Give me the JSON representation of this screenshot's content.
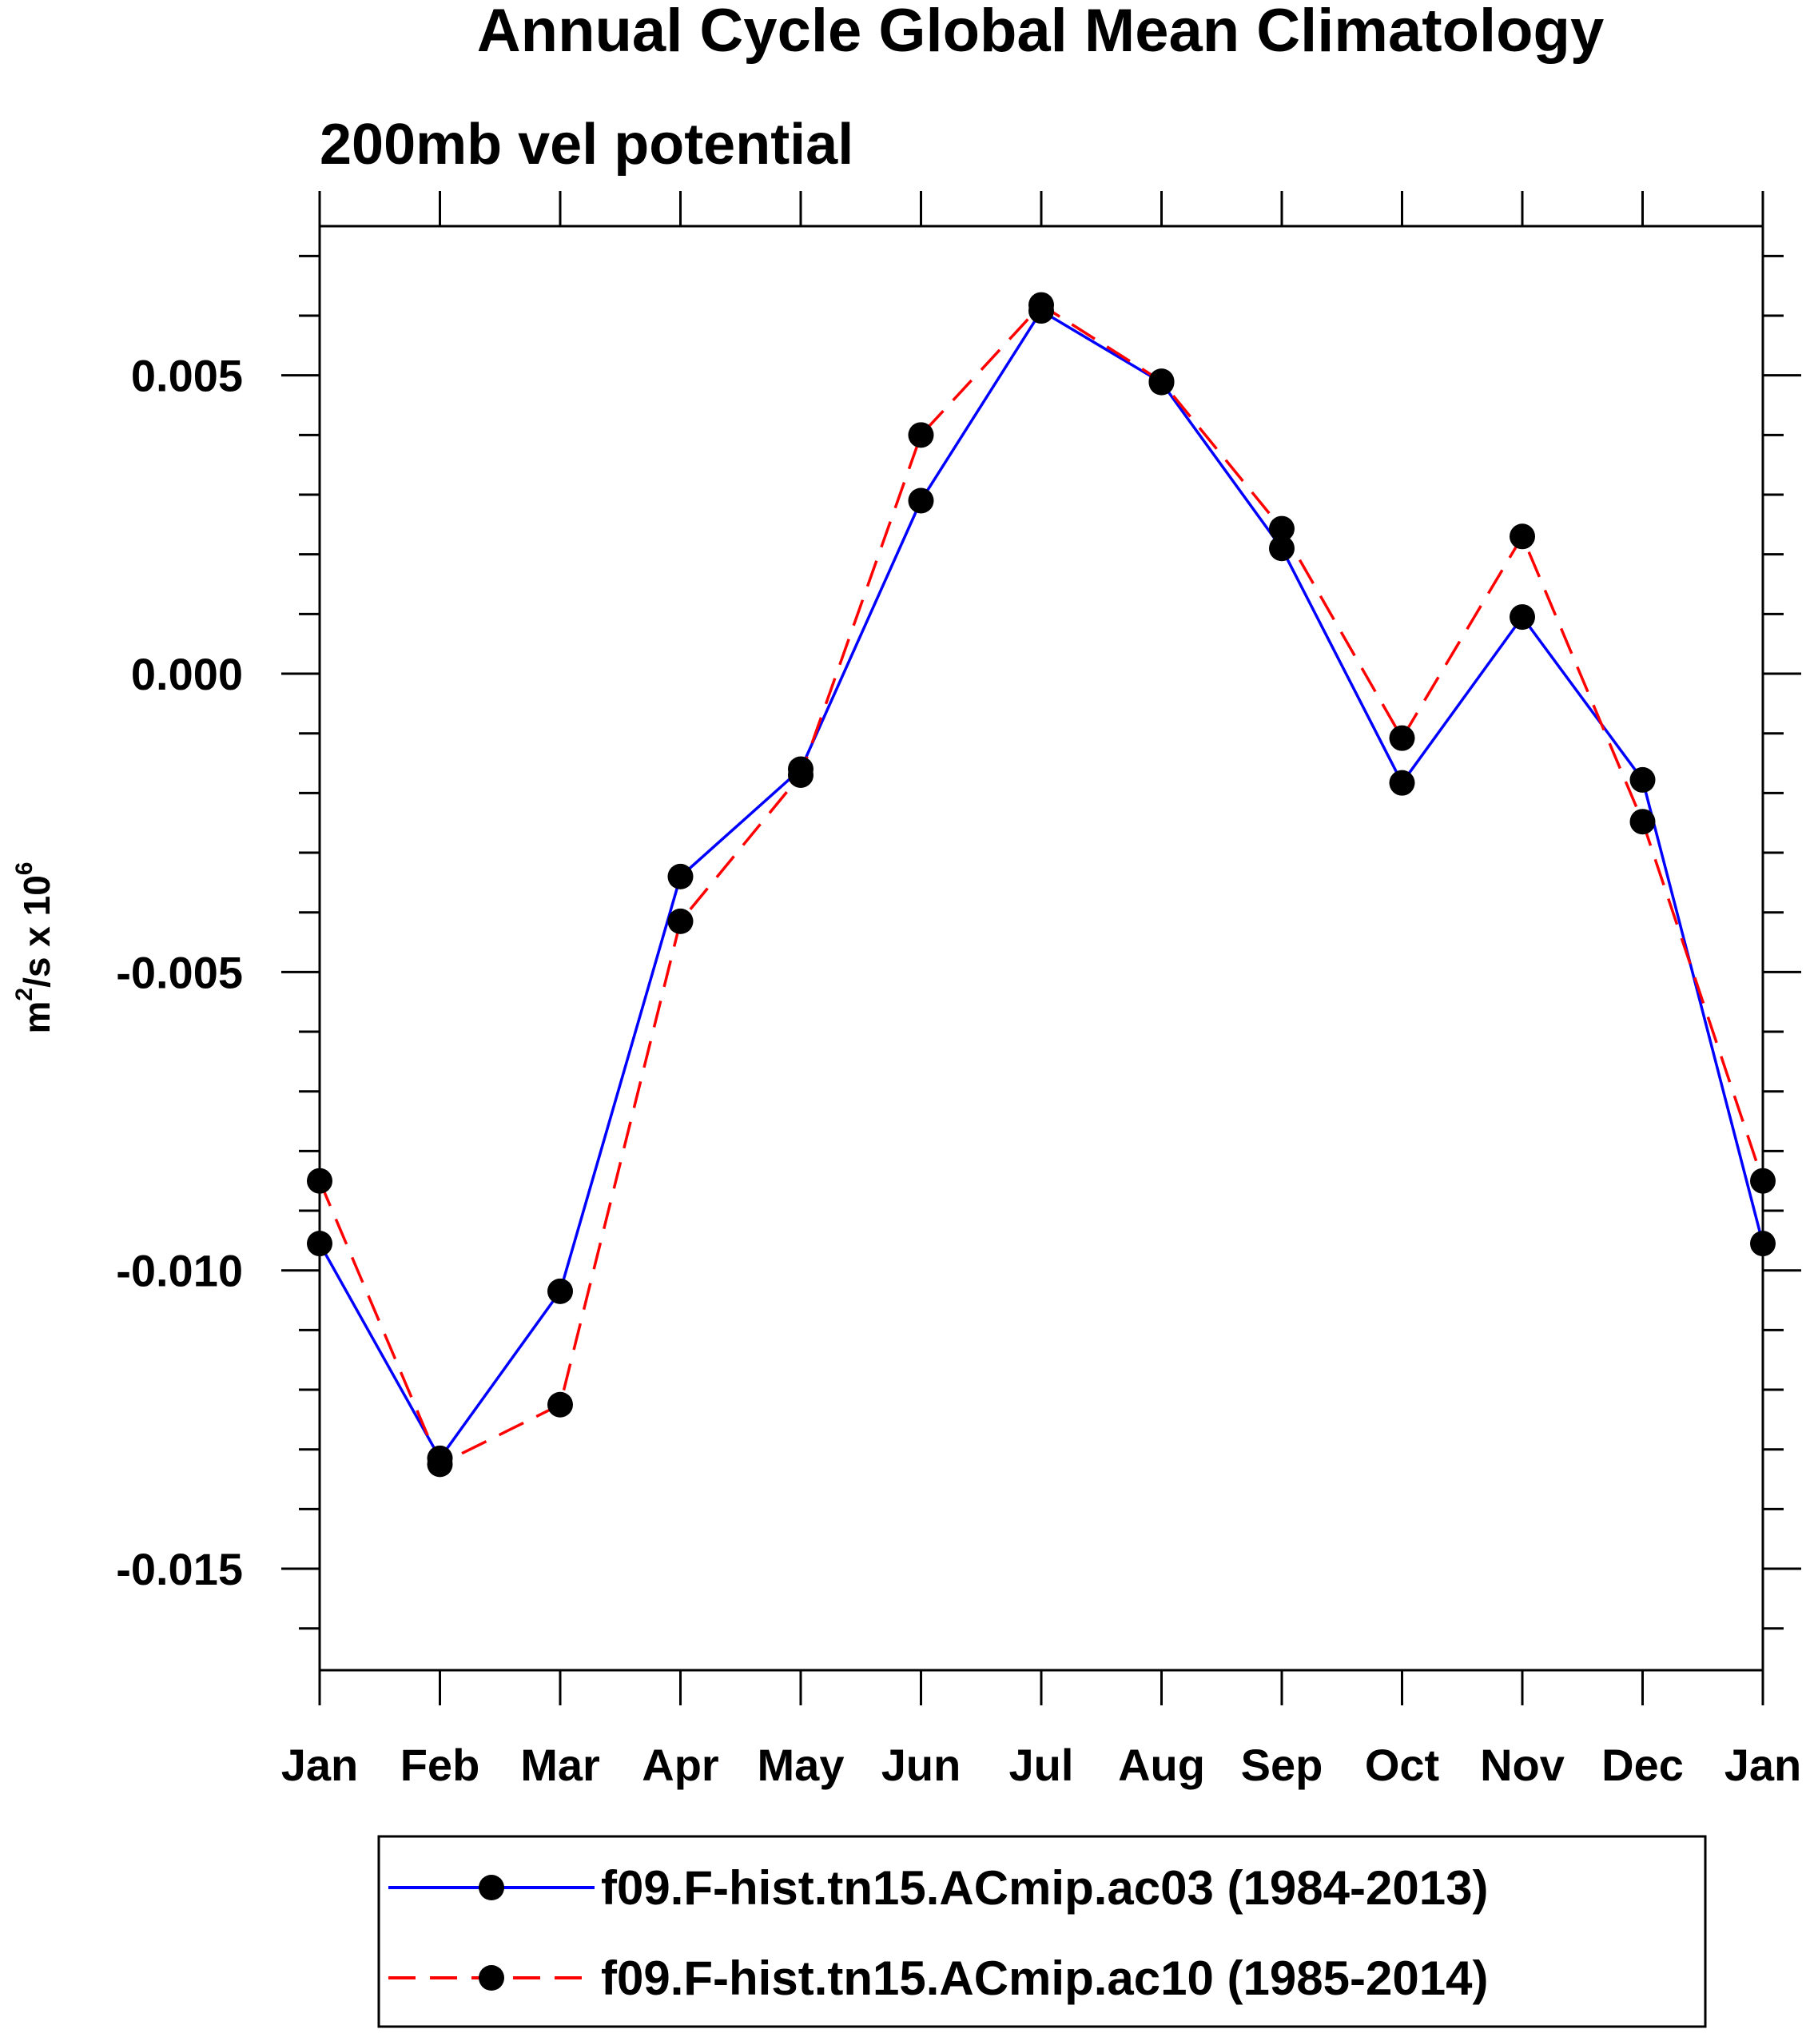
{
  "chart_data": {
    "type": "line",
    "title": "Annual Cycle Global Mean Climatology",
    "subtitle": "200mb vel potential",
    "ylabel": {
      "base": "m",
      "sup1": "2",
      "mid": "/s x 10",
      "sup2": "6"
    },
    "xlabel": "",
    "categories": [
      "Jan",
      "Feb",
      "Mar",
      "Apr",
      "May",
      "Jun",
      "Jul",
      "Aug",
      "Sep",
      "Oct",
      "Nov",
      "Dec",
      "Jan"
    ],
    "ylim": [
      -0.0167,
      0.0075
    ],
    "yticks": [
      0.005,
      0.0,
      -0.005,
      -0.01,
      -0.015
    ],
    "ytick_labels": [
      "0.005",
      "0.000",
      "-0.005",
      "-0.010",
      "-0.015"
    ],
    "yminor_step": 0.001,
    "grid": false,
    "legend_position": "bottom",
    "series": [
      {
        "name": "f09.F-hist.tn15.ACmip.ac03 (1984-2013)",
        "color": "#0000ff",
        "dash": "solid",
        "values": [
          -0.00955,
          -0.01315,
          -0.01035,
          -0.0034,
          -0.0016,
          0.0029,
          0.00608,
          0.00488,
          0.0021,
          -0.00183,
          0.00095,
          -0.00178,
          -0.00955
        ]
      },
      {
        "name": "f09.F-hist.tn15.ACmip.ac10 (1985-2014)",
        "color": "#ff0000",
        "dash": "dashed",
        "values": [
          -0.0085,
          -0.01325,
          -0.01225,
          -0.00415,
          -0.0017,
          0.004,
          0.00618,
          0.0049,
          0.00243,
          -0.00108,
          0.0023,
          -0.00248,
          -0.0085
        ]
      }
    ]
  }
}
